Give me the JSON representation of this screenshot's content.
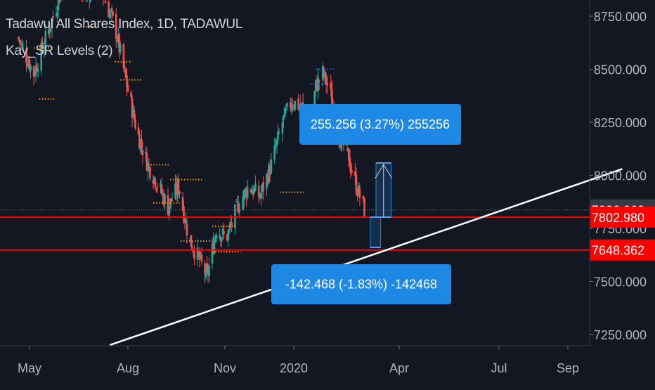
{
  "legend": {
    "symbol_title": "Tadawul All Shares Index, 1D, TADAWUL",
    "indicator": "Kay_SR Levels",
    "indicator_params": "(2)"
  },
  "chart_data": {
    "type": "candlestick",
    "title": "Tadawul All Shares Index, 1D, TADAWUL",
    "x_ticks": [
      "May",
      "Aug",
      "Nov",
      "2020",
      "Apr",
      "Jul",
      "Sep"
    ],
    "y_ticks": [
      "7250.000",
      "7500.000",
      "7750.000",
      "8000.000",
      "8250.000",
      "8500.000",
      "8750.000"
    ],
    "ylim": [
      7200,
      8820
    ],
    "y_tick_values": [
      7250,
      7500,
      7750,
      8000,
      8250,
      8500,
      8750
    ],
    "grid": false,
    "colors": {
      "up": "#26a69a",
      "down": "#ef5350",
      "support_line": "#ff0000",
      "trend_line": "#ffffff",
      "sr_dots": "#ff9800",
      "sr_dots_alt": "#2962ff",
      "measure_box": "#1e88e5",
      "last_price_badge": "#363a45",
      "level_badge": "#ff0000"
    },
    "price_series": [
      {
        "date": "2019-04-20",
        "close": 8650
      },
      {
        "date": "2019-05-05",
        "close": 8480
      },
      {
        "date": "2019-05-20",
        "close": 8700
      },
      {
        "date": "2019-06-05",
        "close": 8950
      },
      {
        "date": "2019-06-20",
        "close": 8850
      },
      {
        "date": "2019-07-05",
        "close": 8900
      },
      {
        "date": "2019-07-20",
        "close": 8700
      },
      {
        "date": "2019-08-01",
        "close": 8400
      },
      {
        "date": "2019-08-10",
        "close": 8200
      },
      {
        "date": "2019-08-20",
        "close": 8050
      },
      {
        "date": "2019-08-30",
        "close": 7950
      },
      {
        "date": "2019-09-08",
        "close": 7850
      },
      {
        "date": "2019-09-18",
        "close": 7950
      },
      {
        "date": "2019-09-28",
        "close": 7700
      },
      {
        "date": "2019-10-08",
        "close": 7600
      },
      {
        "date": "2019-10-15",
        "close": 7520
      },
      {
        "date": "2019-10-24",
        "close": 7750
      },
      {
        "date": "2019-11-02",
        "close": 7700
      },
      {
        "date": "2019-11-12",
        "close": 7850
      },
      {
        "date": "2019-11-22",
        "close": 7950
      },
      {
        "date": "2019-12-02",
        "close": 7900
      },
      {
        "date": "2019-12-12",
        "close": 8050
      },
      {
        "date": "2019-12-22",
        "close": 8250
      },
      {
        "date": "2019-12-30",
        "close": 8350
      },
      {
        "date": "2020-01-08",
        "close": 8320
      },
      {
        "date": "2020-01-14",
        "close": 8200
      },
      {
        "date": "2020-01-20",
        "close": 8420
      },
      {
        "date": "2020-01-26",
        "close": 8480
      },
      {
        "date": "2020-02-01",
        "close": 8400
      },
      {
        "date": "2020-02-08",
        "close": 8200
      },
      {
        "date": "2020-02-16",
        "close": 8100
      },
      {
        "date": "2020-02-24",
        "close": 7950
      },
      {
        "date": "2020-03-02",
        "close": 7837
      }
    ],
    "levels": [
      {
        "label": "7836.960",
        "value": 7836.96,
        "kind": "last_price"
      },
      {
        "label": "7802.980",
        "value": 7802.98,
        "kind": "support"
      },
      {
        "label": "7648.362",
        "value": 7648.362,
        "kind": "support"
      }
    ],
    "trend_line": {
      "from": {
        "date": "2019-07-15",
        "value": 7200
      },
      "to": {
        "date": "2020-10-20",
        "value": 8030
      }
    },
    "measure_up": {
      "label": "255.256 (3.27%) 255256",
      "from_value": 7802.98,
      "to_value": 8058.236,
      "date_start": "2020-03-12",
      "date_end": "2020-03-25"
    },
    "measure_down": {
      "label": "-142.468 (-1.83%) -142468",
      "from_value": 7802.98,
      "to_value": 7660.512,
      "date_start": "2020-03-07",
      "date_end": "2020-03-16"
    },
    "sr_dot_rows": [
      {
        "value": 8700,
        "date_start": "2019-06-15",
        "date_end": "2019-07-05"
      },
      {
        "value": 8600,
        "date_start": "2019-05-05",
        "date_end": "2019-05-20"
      },
      {
        "value": 8535,
        "date_start": "2019-07-20",
        "date_end": "2019-08-05"
      },
      {
        "value": 8450,
        "date_start": "2019-07-25",
        "date_end": "2019-08-15"
      },
      {
        "value": 8360,
        "date_start": "2019-05-10",
        "date_end": "2019-05-25"
      },
      {
        "value": 8050,
        "date_start": "2019-08-20",
        "date_end": "2019-09-10"
      },
      {
        "value": 7980,
        "date_start": "2019-09-10",
        "date_end": "2019-10-10"
      },
      {
        "value": 7920,
        "date_start": "2019-12-20",
        "date_end": "2020-01-10"
      },
      {
        "value": 7870,
        "date_start": "2019-08-25",
        "date_end": "2019-09-20"
      },
      {
        "value": 7760,
        "date_start": "2019-10-20",
        "date_end": "2019-11-10"
      },
      {
        "value": 7690,
        "date_start": "2019-09-20",
        "date_end": "2019-10-20"
      },
      {
        "value": 7640,
        "date_start": "2019-10-20",
        "date_end": "2019-11-15"
      },
      {
        "value": 8500,
        "date_start": "2020-01-20",
        "date_end": "2020-02-05"
      },
      {
        "value": 8430,
        "date_start": "2020-01-15",
        "date_end": "2020-01-28"
      }
    ]
  }
}
